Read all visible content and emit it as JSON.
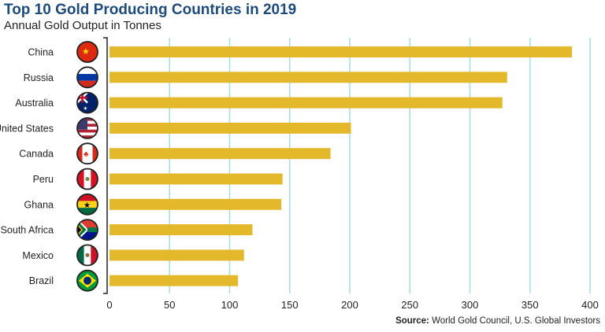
{
  "chart_data": {
    "type": "bar",
    "orientation": "horizontal",
    "title": "Top 10 Gold Producing Countries in 2019",
    "subtitle": "Annual Gold Output in Tonnes",
    "categories": [
      "China",
      "Russia",
      "Australia",
      "United States",
      "Canada",
      "Peru",
      "Ghana",
      "South Africa",
      "Mexico",
      "Brazil"
    ],
    "values": [
      385,
      331,
      327,
      201,
      184,
      144,
      143,
      119,
      112,
      107
    ],
    "xlim": [
      0,
      400
    ],
    "xticks": [
      "0",
      "50",
      "100",
      "150",
      "200",
      "250",
      "300",
      "350",
      "400"
    ],
    "grid": "vertical",
    "bar_color": "#e3b82a",
    "grid_color": "#a6dcea",
    "title_color": "#1d4b7c",
    "flag_icons": [
      "china-flag",
      "russia-flag",
      "australia-flag",
      "united-states-flag",
      "canada-flag",
      "peru-flag",
      "ghana-flag",
      "south-africa-flag",
      "mexico-flag",
      "brazil-flag"
    ]
  },
  "source": {
    "label": "Source:",
    "text": "World Gold Council, U.S. Global Investors"
  }
}
